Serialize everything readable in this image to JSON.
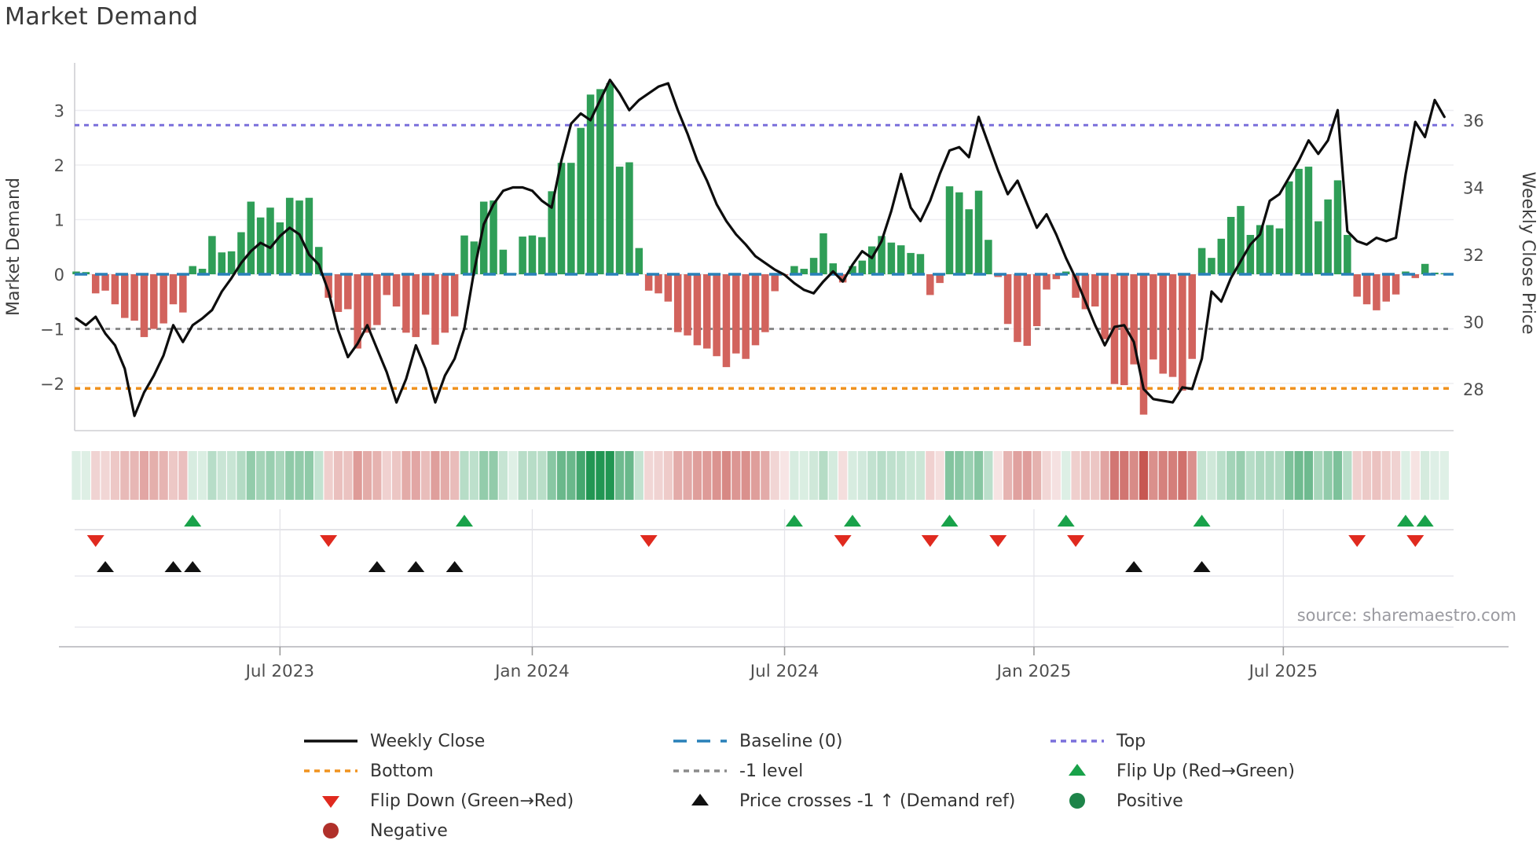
{
  "title": "Market Demand",
  "source": "source: sharemaestro.com",
  "colors": {
    "bar_positive": "#2f9e57",
    "bar_negative": "#d2635d",
    "price_line": "#0d0d0d",
    "baseline": "#2980b9",
    "top_line": "#7a6fdb",
    "bottom_line": "#f0921e",
    "minus_one_line": "#8a8a8a",
    "flip_up": "#19a24a",
    "flip_down": "#e02a1f",
    "price_cross": "#111111",
    "positive_dot": "#1e8449",
    "negative_dot": "#b0302a",
    "heat_green": "#219653",
    "heat_red": "#c5504b"
  },
  "chart_data": {
    "type": "bar+line combo with heatmap strip and event marker rows",
    "title": "Market Demand",
    "left_axis": {
      "label": "Market Demand",
      "ticks": [
        "3",
        "2",
        "1",
        "0",
        "−1",
        "−2"
      ],
      "tick_values": [
        3,
        2,
        1,
        0,
        -1,
        -2
      ],
      "range": [
        -2.9,
        3.85
      ]
    },
    "right_axis": {
      "label": "Weekly Close Price",
      "ticks": [
        "36",
        "34",
        "32",
        "30",
        "28"
      ],
      "tick_values": [
        36,
        34,
        32,
        30,
        28
      ],
      "range": [
        26.8,
        37.7
      ]
    },
    "x_axis": {
      "tick_labels": [
        "Jul 2023",
        "Jan 2024",
        "Jul 2024",
        "Jan 2025",
        "Jul 2025"
      ],
      "tick_weeks": [
        21,
        47,
        73,
        98.7,
        124.4
      ]
    },
    "ref_lines": {
      "top": 2.73,
      "baseline": 0,
      "minus_one": -1,
      "bottom": -2.09
    },
    "legend_position": "bottom, 3 columns",
    "grid": "horizontal light gridlines in main panel; vertical gridlines in lower bands",
    "series": [
      {
        "name": "Market Demand",
        "type": "bar",
        "axis": "left",
        "values": [
          0.05,
          0.04,
          -0.35,
          -0.3,
          -0.55,
          -0.8,
          -0.85,
          -1.15,
          -1.0,
          -0.9,
          -0.55,
          -0.7,
          0.15,
          0.1,
          0.7,
          0.4,
          0.42,
          0.77,
          1.33,
          1.04,
          1.22,
          0.95,
          1.4,
          1.35,
          1.4,
          0.5,
          -0.43,
          -0.69,
          -0.64,
          -1.36,
          -1.07,
          -0.93,
          -0.38,
          -0.59,
          -1.07,
          -1.15,
          -0.74,
          -1.29,
          -1.07,
          -0.77,
          0.71,
          0.6,
          1.33,
          1.35,
          0.45,
          0.02,
          0.69,
          0.71,
          0.68,
          1.52,
          2.04,
          2.04,
          2.68,
          3.29,
          3.39,
          3.5,
          1.97,
          2.05,
          0.48,
          -0.3,
          -0.35,
          -0.5,
          -1.06,
          -1.12,
          -1.3,
          -1.36,
          -1.5,
          -1.7,
          -1.45,
          -1.55,
          -1.3,
          -1.06,
          -0.31,
          -0.02,
          0.15,
          0.1,
          0.3,
          0.75,
          0.2,
          -0.15,
          0.15,
          0.25,
          0.51,
          0.7,
          0.58,
          0.53,
          0.39,
          0.37,
          -0.38,
          -0.16,
          1.61,
          1.5,
          1.19,
          1.53,
          0.63,
          -0.05,
          -0.91,
          -1.24,
          -1.31,
          -0.95,
          -0.28,
          -0.09,
          0.05,
          -0.43,
          -0.64,
          -0.59,
          -1.19,
          -2.01,
          -2.03,
          -1.65,
          -2.57,
          -1.56,
          -1.82,
          -1.88,
          -2.13,
          -1.55,
          0.48,
          0.3,
          0.65,
          1.05,
          1.25,
          0.72,
          0.9,
          0.9,
          0.84,
          1.7,
          1.93,
          1.97,
          0.97,
          1.37,
          1.72,
          0.72,
          -0.41,
          -0.55,
          -0.66,
          -0.5,
          -0.37,
          0.05,
          -0.07,
          0.19,
          0.03,
          0.02
        ]
      },
      {
        "name": "Weekly Close",
        "type": "line",
        "axis": "right",
        "values": [
          30.1,
          29.9,
          30.15,
          29.65,
          29.3,
          28.6,
          27.2,
          27.9,
          28.4,
          29.0,
          29.9,
          29.4,
          29.9,
          30.1,
          30.35,
          30.9,
          31.3,
          31.75,
          32.1,
          32.35,
          32.2,
          32.55,
          32.8,
          32.6,
          32.0,
          31.7,
          30.9,
          29.75,
          28.95,
          29.35,
          29.9,
          29.2,
          28.5,
          27.6,
          28.3,
          29.3,
          28.6,
          27.6,
          28.4,
          28.9,
          29.8,
          31.5,
          32.9,
          33.5,
          33.9,
          34.0,
          34.0,
          33.9,
          33.6,
          33.4,
          34.8,
          35.9,
          36.2,
          36.0,
          36.6,
          37.2,
          36.8,
          36.3,
          36.6,
          36.8,
          37.0,
          37.1,
          36.3,
          35.6,
          34.8,
          34.2,
          33.5,
          33.0,
          32.6,
          32.3,
          31.95,
          31.75,
          31.55,
          31.4,
          31.15,
          30.95,
          30.85,
          31.2,
          31.5,
          31.2,
          31.7,
          32.1,
          31.9,
          32.4,
          33.3,
          34.4,
          33.4,
          33.0,
          33.6,
          34.4,
          35.1,
          35.2,
          34.9,
          36.1,
          35.3,
          34.5,
          33.8,
          34.2,
          33.5,
          32.8,
          33.2,
          32.6,
          31.9,
          31.3,
          30.6,
          29.9,
          29.3,
          29.85,
          29.9,
          29.4,
          28.0,
          27.7,
          27.65,
          27.6,
          28.05,
          28.0,
          28.9,
          30.9,
          30.6,
          31.3,
          31.8,
          32.3,
          32.6,
          33.6,
          33.8,
          34.3,
          34.8,
          35.4,
          35.0,
          35.4,
          36.3,
          32.7,
          32.4,
          32.3,
          32.5,
          32.4,
          32.5,
          34.4,
          35.95,
          35.5,
          36.6,
          36.1
        ]
      }
    ],
    "heatmap_strip": "weekly cells colored by Market Demand value (green positive, red negative, intensity by magnitude)",
    "markers": {
      "flip_up_weeks": [
        12,
        40,
        74,
        80,
        90,
        102,
        116,
        137,
        139
      ],
      "flip_down_weeks": [
        2,
        26,
        59,
        79,
        88,
        95,
        103,
        132,
        138
      ],
      "price_cross_weeks": [
        3,
        10,
        12,
        31,
        35,
        39,
        109,
        116
      ]
    },
    "legend": [
      {
        "label": "Weekly Close",
        "swatch": "line-solid",
        "color": "#0d0d0d",
        "col": 0,
        "row": 0
      },
      {
        "label": "Bottom",
        "swatch": "line-dotted",
        "color": "#f0921e",
        "col": 0,
        "row": 1
      },
      {
        "label": "Flip Down (Green→Red)",
        "swatch": "triangle-down",
        "color": "#e02a1f",
        "col": 0,
        "row": 2
      },
      {
        "label": "Negative",
        "swatch": "circle",
        "color": "#b0302a",
        "col": 0,
        "row": 3
      },
      {
        "label": "Baseline (0)",
        "swatch": "line-dashed",
        "color": "#2980b9",
        "col": 1,
        "row": 0
      },
      {
        "label": "-1 level",
        "swatch": "line-dotted",
        "color": "#8a8a8a",
        "col": 1,
        "row": 1
      },
      {
        "label": "Price crosses -1 ↑ (Demand ref)",
        "swatch": "triangle-up",
        "color": "#111111",
        "col": 1,
        "row": 2
      },
      {
        "label": "Top",
        "swatch": "line-dotted",
        "color": "#7a6fdb",
        "col": 2,
        "row": 0
      },
      {
        "label": "Flip Up (Red→Green)",
        "swatch": "triangle-up",
        "color": "#19a24a",
        "col": 2,
        "row": 1
      },
      {
        "label": "Positive",
        "swatch": "circle",
        "color": "#1e8449",
        "col": 2,
        "row": 2
      }
    ]
  }
}
